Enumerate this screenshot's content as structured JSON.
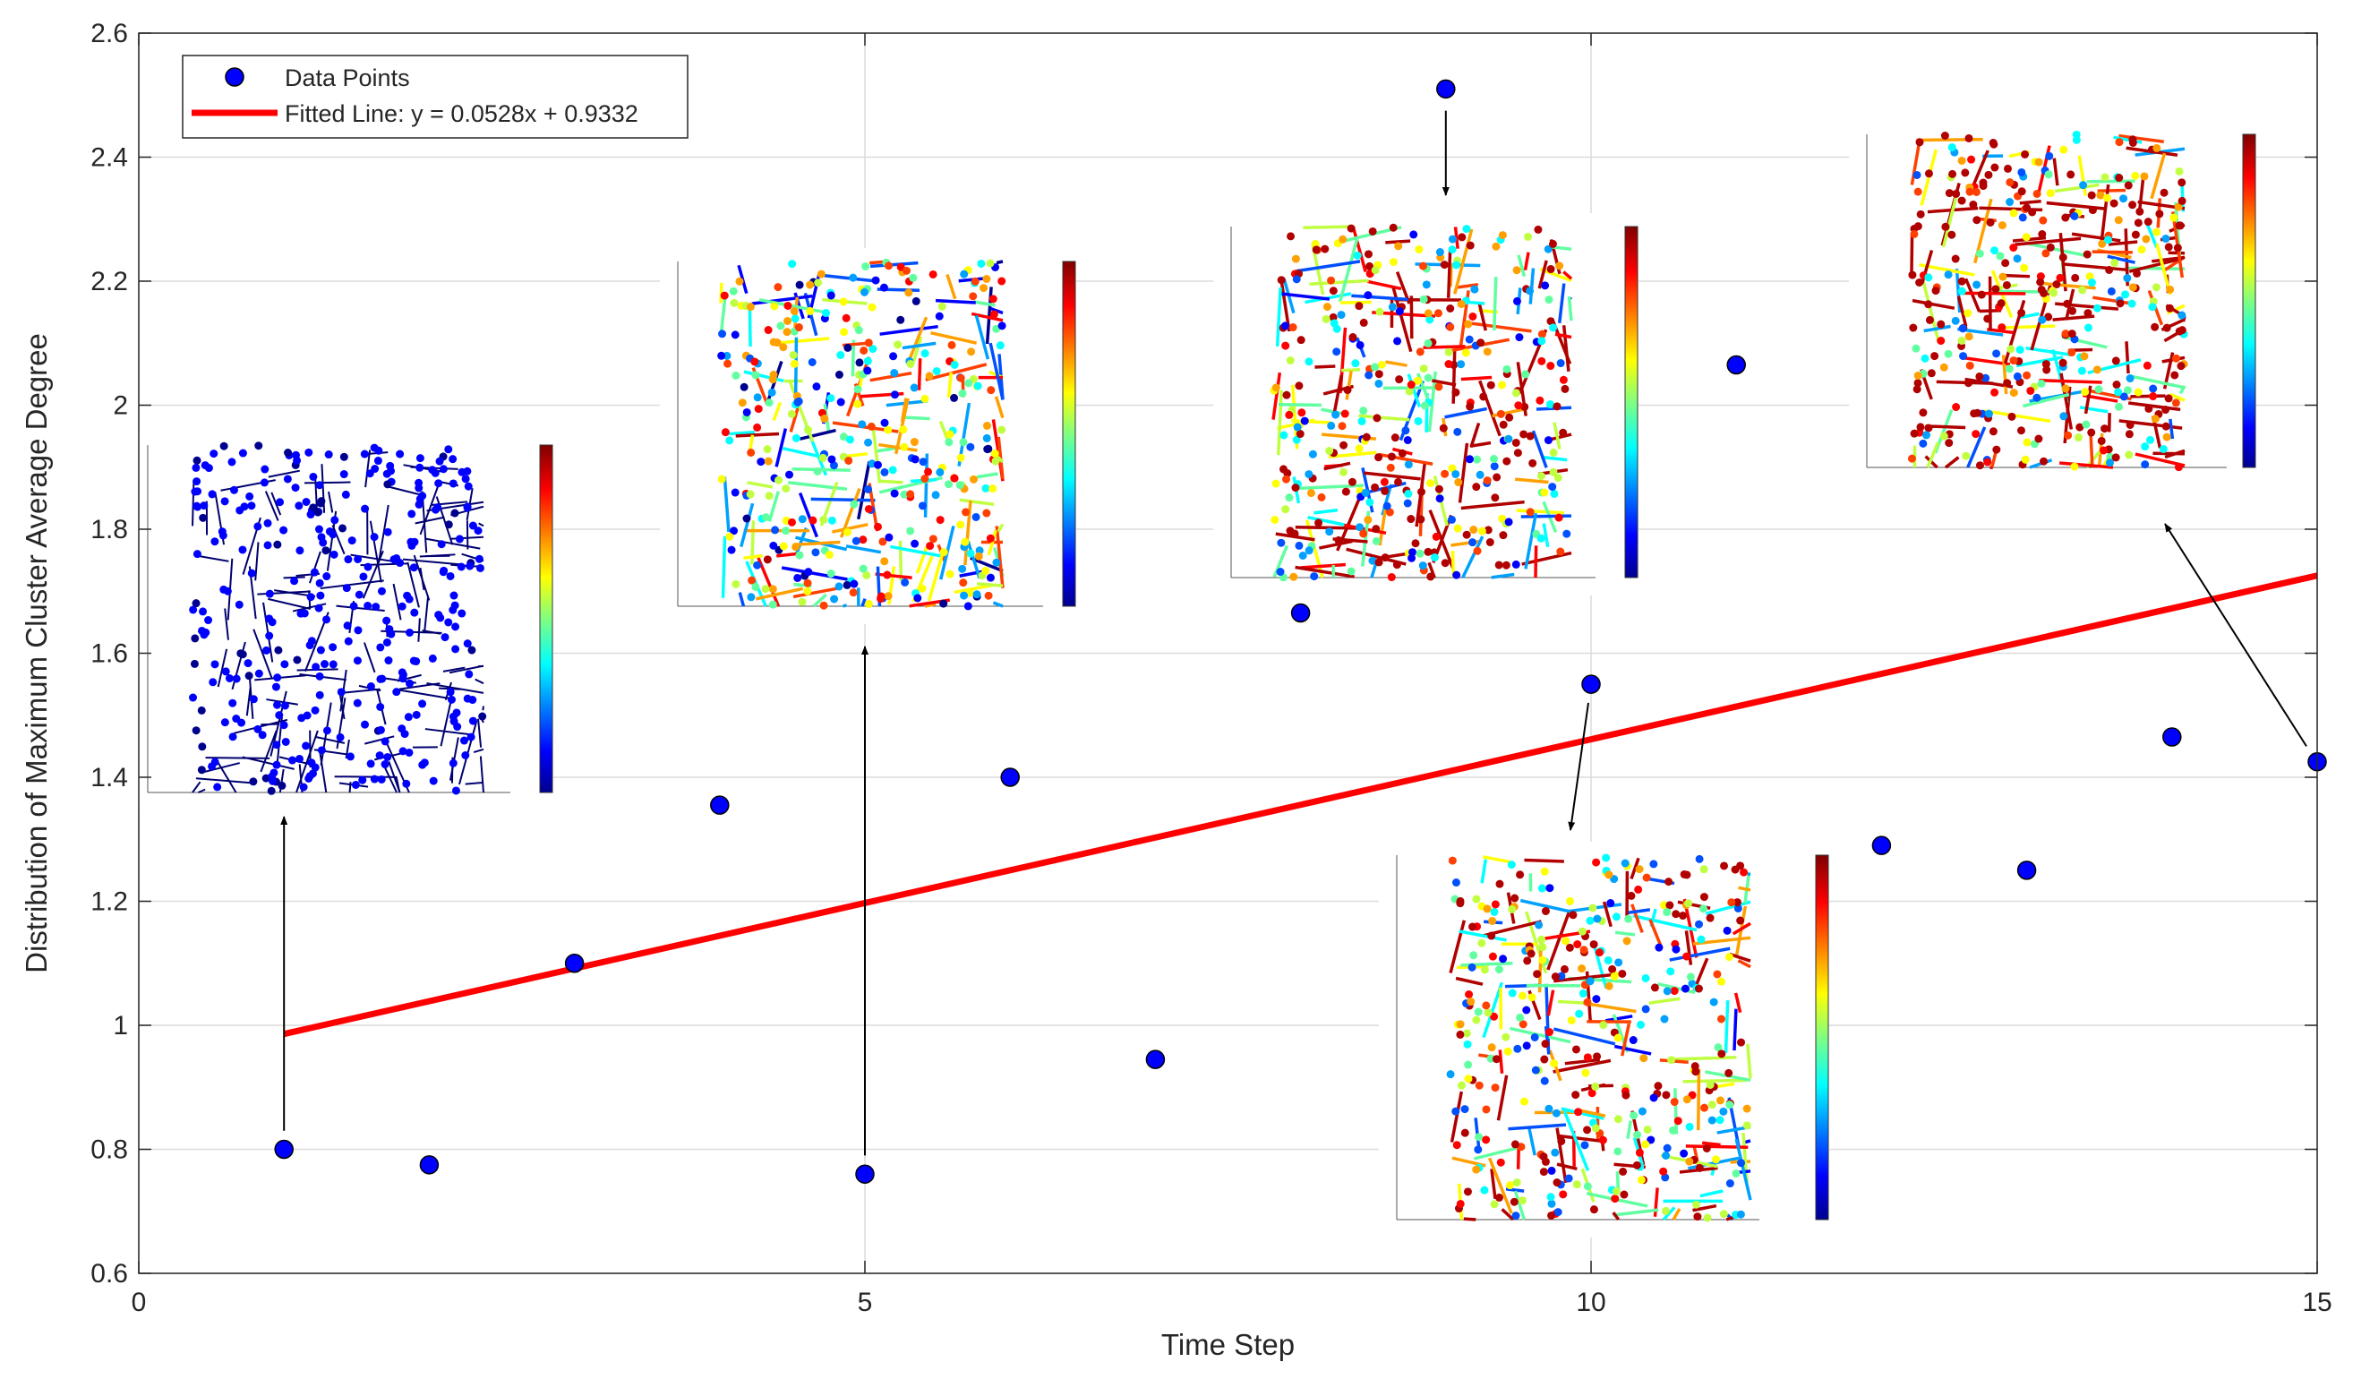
{
  "chart_data": {
    "type": "scatter",
    "xlabel": "Time Step",
    "ylabel": "Distribution of Maximum Cluster Average Degree",
    "xlim": [
      0,
      15
    ],
    "ylim": [
      0.6,
      2.6
    ],
    "xticks": [
      0,
      5,
      10,
      15
    ],
    "yticks": [
      0.6,
      0.8,
      1,
      1.2,
      1.4,
      1.6,
      1.8,
      2,
      2.2,
      2.4,
      2.6
    ],
    "xtick_labels": [
      "0",
      "5",
      "10",
      "15"
    ],
    "ytick_labels": [
      "0.6",
      "0.8",
      "1",
      "1.2",
      "1.4",
      "1.6",
      "1.8",
      "2",
      "2.2",
      "2.4",
      "2.6"
    ],
    "grid": true,
    "legend_position": "top-left",
    "series": [
      {
        "name": "Data Points",
        "kind": "scatter",
        "color": "#0000ff",
        "x": [
          1,
          2,
          3,
          4,
          5,
          6,
          7,
          8,
          9,
          10,
          11,
          12,
          13,
          14,
          15
        ],
        "y": [
          0.8,
          0.775,
          1.1,
          1.355,
          0.76,
          1.4,
          0.945,
          1.665,
          2.51,
          1.55,
          2.065,
          1.29,
          1.25,
          1.465,
          1.425
        ]
      },
      {
        "name": "Fitted Line: y = 0.0528x + 0.9332",
        "kind": "line",
        "color": "#ff0000",
        "slope": 0.0528,
        "intercept": 0.9332,
        "x_range": [
          1,
          15
        ]
      }
    ],
    "annotations": [
      {
        "type": "inset-network-plot",
        "linked_point_x": 1
      },
      {
        "type": "inset-network-plot",
        "linked_point_x": 5
      },
      {
        "type": "inset-network-plot",
        "linked_point_x": 9
      },
      {
        "type": "inset-network-plot",
        "linked_point_x": 10
      },
      {
        "type": "inset-network-plot",
        "linked_point_x": 15
      }
    ]
  }
}
